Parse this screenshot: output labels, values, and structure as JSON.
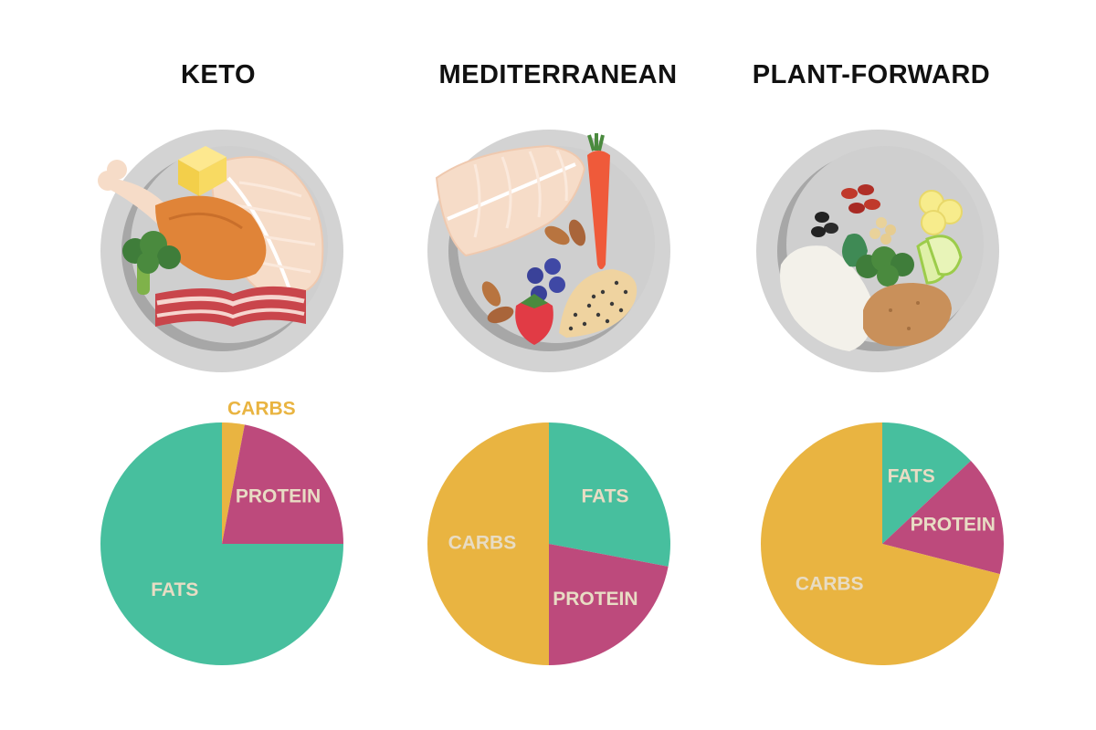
{
  "colors": {
    "fats": "#47bf9e",
    "protein": "#bd4a7c",
    "carbs": "#e9b441",
    "label_inside": "#e8dcc4",
    "label_outside": "#e9b441",
    "plate_outer": "#d3d3d3",
    "plate_rim": "#a7a7a7",
    "plate_inner": "#cfcfcf"
  },
  "diets": [
    {
      "title": "KETO",
      "plate_icon": "keto-plate-illustration",
      "plate_foods": [
        "butter",
        "chicken-drumstick",
        "fish-fillet",
        "broccoli",
        "bacon"
      ]
    },
    {
      "title": "MEDITERRANEAN",
      "plate_icon": "mediterranean-plate-illustration",
      "plate_foods": [
        "fish-fillet",
        "carrot",
        "almonds",
        "blueberries",
        "strawberry",
        "whole-grain-bread"
      ]
    },
    {
      "title": "PLANT-FORWARD",
      "plate_icon": "plant-forward-plate-illustration",
      "plate_foods": [
        "beans",
        "chickpeas",
        "banana",
        "rice",
        "spinach",
        "broccoli",
        "apple-slices",
        "potato"
      ]
    }
  ],
  "chart_data": [
    {
      "type": "pie",
      "title": "KETO",
      "slices": [
        {
          "label": "CARBS",
          "value": 3,
          "color": "#e9b441",
          "label_outside": true
        },
        {
          "label": "PROTEIN",
          "value": 22,
          "color": "#bd4a7c"
        },
        {
          "label": "FATS",
          "value": 75,
          "color": "#47bf9e"
        }
      ]
    },
    {
      "type": "pie",
      "title": "MEDITERRANEAN",
      "slices": [
        {
          "label": "FATS",
          "value": 28,
          "color": "#47bf9e"
        },
        {
          "label": "PROTEIN",
          "value": 22,
          "color": "#bd4a7c"
        },
        {
          "label": "CARBS",
          "value": 50,
          "color": "#e9b441"
        }
      ]
    },
    {
      "type": "pie",
      "title": "PLANT-FORWARD",
      "slices": [
        {
          "label": "FATS",
          "value": 13,
          "color": "#47bf9e"
        },
        {
          "label": "PROTEIN",
          "value": 16,
          "color": "#bd4a7c"
        },
        {
          "label": "CARBS",
          "value": 71,
          "color": "#e9b441"
        }
      ]
    }
  ]
}
